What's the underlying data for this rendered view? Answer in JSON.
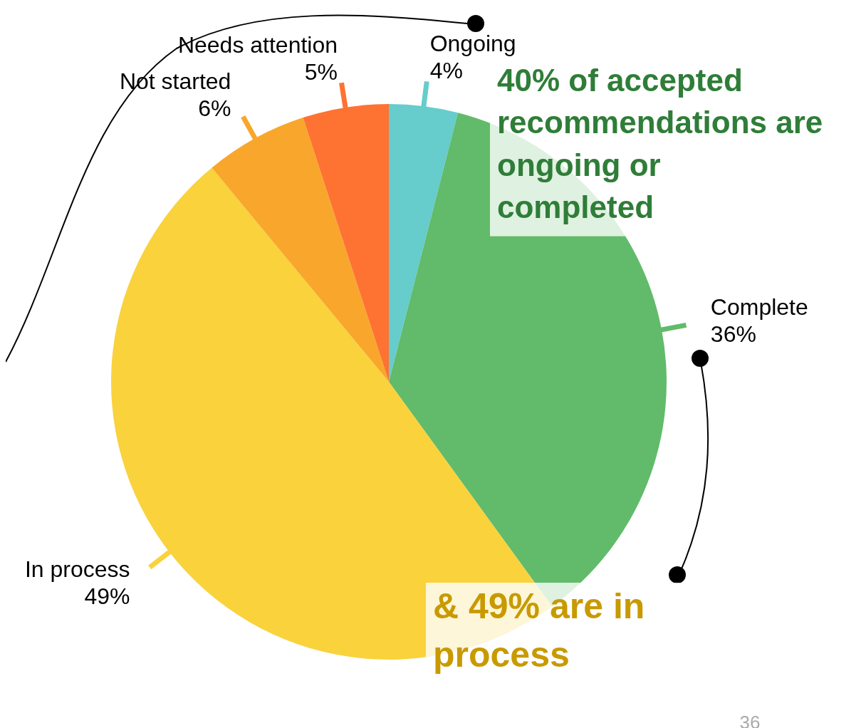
{
  "chart_data": {
    "type": "pie",
    "categories": [
      "Ongoing",
      "Complete",
      "In process",
      "Not started",
      "Needs attention"
    ],
    "values": [
      4,
      36,
      49,
      6,
      5
    ],
    "value_labels": [
      "4%",
      "36%",
      "49%",
      "6%",
      "5%"
    ],
    "colors": [
      "#66cccc",
      "#61bb6a",
      "#f9d23c",
      "#f8a72c",
      "#fe7232"
    ],
    "annotations": [
      "40% of accepted recommendations are ongoing or completed",
      "& 49% are in process",
      "36"
    ]
  }
}
